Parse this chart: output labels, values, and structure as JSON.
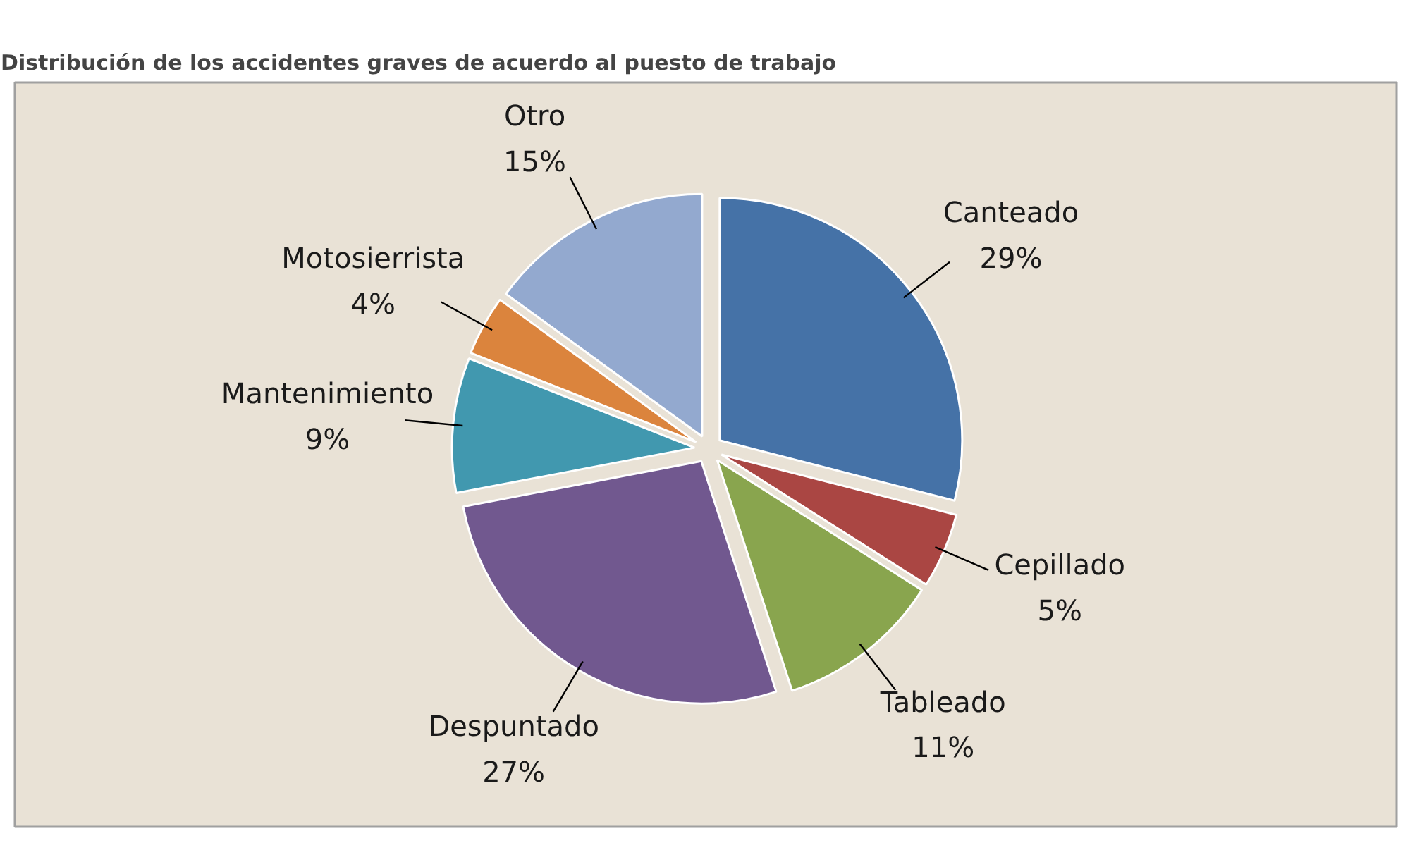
{
  "chart_data": {
    "type": "pie",
    "title": "Distribución de los accidentes graves de acuerdo al puesto de trabajo",
    "categories": [
      "Canteado",
      "Cepillado",
      "Tableado",
      "Despuntado",
      "Mantenimiento",
      "Motosierrista",
      "Otro"
    ],
    "values": [
      29,
      5,
      11,
      27,
      9,
      4,
      15
    ],
    "value_labels": [
      "29%",
      "5%",
      "11%",
      "27%",
      "9%",
      "4%",
      "15%"
    ],
    "colors": [
      "#4572a7",
      "#aa4643",
      "#89a54e",
      "#71588f",
      "#4198af",
      "#db843d",
      "#93a9cf"
    ]
  }
}
